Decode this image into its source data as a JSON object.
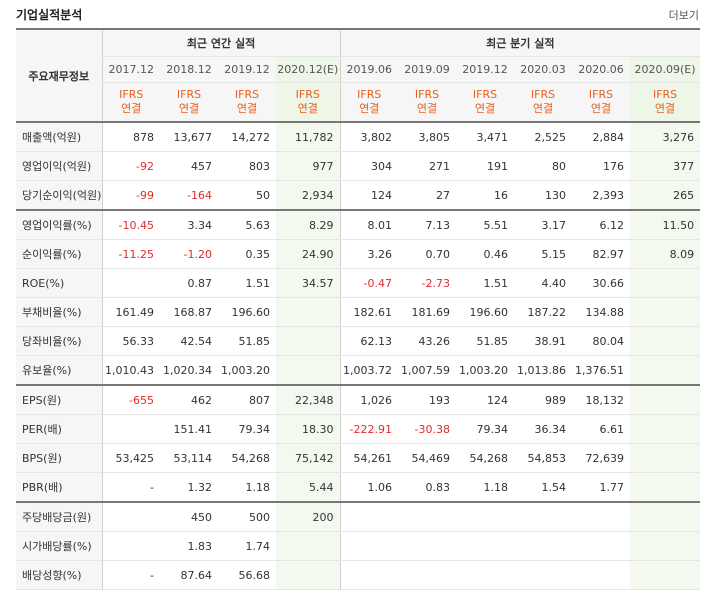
{
  "header": {
    "title": "기업실적분석",
    "more": "더보기"
  },
  "group_labels": {
    "annual": "최근 연간 실적",
    "quarter": "최근 분기 실적"
  },
  "row_label_header": "주요재무정보",
  "periods": [
    "2017.12",
    "2018.12",
    "2019.12",
    "2020.12(E)",
    "2019.06",
    "2019.09",
    "2019.12",
    "2020.03",
    "2020.06",
    "2020.09(E)"
  ],
  "ifrs": {
    "top": "IFRS",
    "bottom": "연결"
  },
  "rows": [
    {
      "label": "매출액(억원)",
      "v": [
        "878",
        "13,677",
        "14,272",
        "11,782",
        "3,802",
        "3,805",
        "3,471",
        "2,525",
        "2,884",
        "3,276"
      ]
    },
    {
      "label": "영업이익(억원)",
      "v": [
        "-92",
        "457",
        "803",
        "977",
        "304",
        "271",
        "191",
        "80",
        "176",
        "377"
      ]
    },
    {
      "label": "당기순이익(억원)",
      "v": [
        "-99",
        "-164",
        "50",
        "2,934",
        "124",
        "27",
        "16",
        "130",
        "2,393",
        "265"
      ]
    },
    {
      "label": "영업이익률(%)",
      "v": [
        "-10.45",
        "3.34",
        "5.63",
        "8.29",
        "8.01",
        "7.13",
        "5.51",
        "3.17",
        "6.12",
        "11.50"
      ]
    },
    {
      "label": "순이익률(%)",
      "v": [
        "-11.25",
        "-1.20",
        "0.35",
        "24.90",
        "3.26",
        "0.70",
        "0.46",
        "5.15",
        "82.97",
        "8.09"
      ]
    },
    {
      "label": "ROE(%)",
      "v": [
        "",
        "0.87",
        "1.51",
        "34.57",
        "-0.47",
        "-2.73",
        "1.51",
        "4.40",
        "30.66",
        ""
      ]
    },
    {
      "label": "부채비율(%)",
      "v": [
        "161.49",
        "168.87",
        "196.60",
        "",
        "182.61",
        "181.69",
        "196.60",
        "187.22",
        "134.88",
        ""
      ]
    },
    {
      "label": "당좌비율(%)",
      "v": [
        "56.33",
        "42.54",
        "51.85",
        "",
        "62.13",
        "43.26",
        "51.85",
        "38.91",
        "80.04",
        ""
      ]
    },
    {
      "label": "유보율(%)",
      "v": [
        "1,010.43",
        "1,020.34",
        "1,003.20",
        "",
        "1,003.72",
        "1,007.59",
        "1,003.20",
        "1,013.86",
        "1,376.51",
        ""
      ]
    },
    {
      "label": "EPS(원)",
      "v": [
        "-655",
        "462",
        "807",
        "22,348",
        "1,026",
        "193",
        "124",
        "989",
        "18,132",
        ""
      ]
    },
    {
      "label": "PER(배)",
      "v": [
        "",
        "151.41",
        "79.34",
        "18.30",
        "-222.91",
        "-30.38",
        "79.34",
        "36.34",
        "6.61",
        ""
      ]
    },
    {
      "label": "BPS(원)",
      "v": [
        "53,425",
        "53,114",
        "54,268",
        "75,142",
        "54,261",
        "54,469",
        "54,268",
        "54,853",
        "72,639",
        ""
      ]
    },
    {
      "label": "PBR(배)",
      "v": [
        "-",
        "1.32",
        "1.18",
        "5.44",
        "1.06",
        "0.83",
        "1.18",
        "1.54",
        "1.77",
        ""
      ]
    },
    {
      "label": "주당배당금(원)",
      "v": [
        "",
        "450",
        "500",
        "200",
        "",
        "",
        "",
        "",
        "",
        ""
      ]
    },
    {
      "label": "시가배당률(%)",
      "v": [
        "",
        "1.83",
        "1.74",
        "",
        "",
        "",
        "",
        "",
        "",
        ""
      ]
    },
    {
      "label": "배당성향(%)",
      "v": [
        "-",
        "87.64",
        "56.68",
        "",
        "",
        "",
        "",
        "",
        "",
        ""
      ]
    }
  ]
}
